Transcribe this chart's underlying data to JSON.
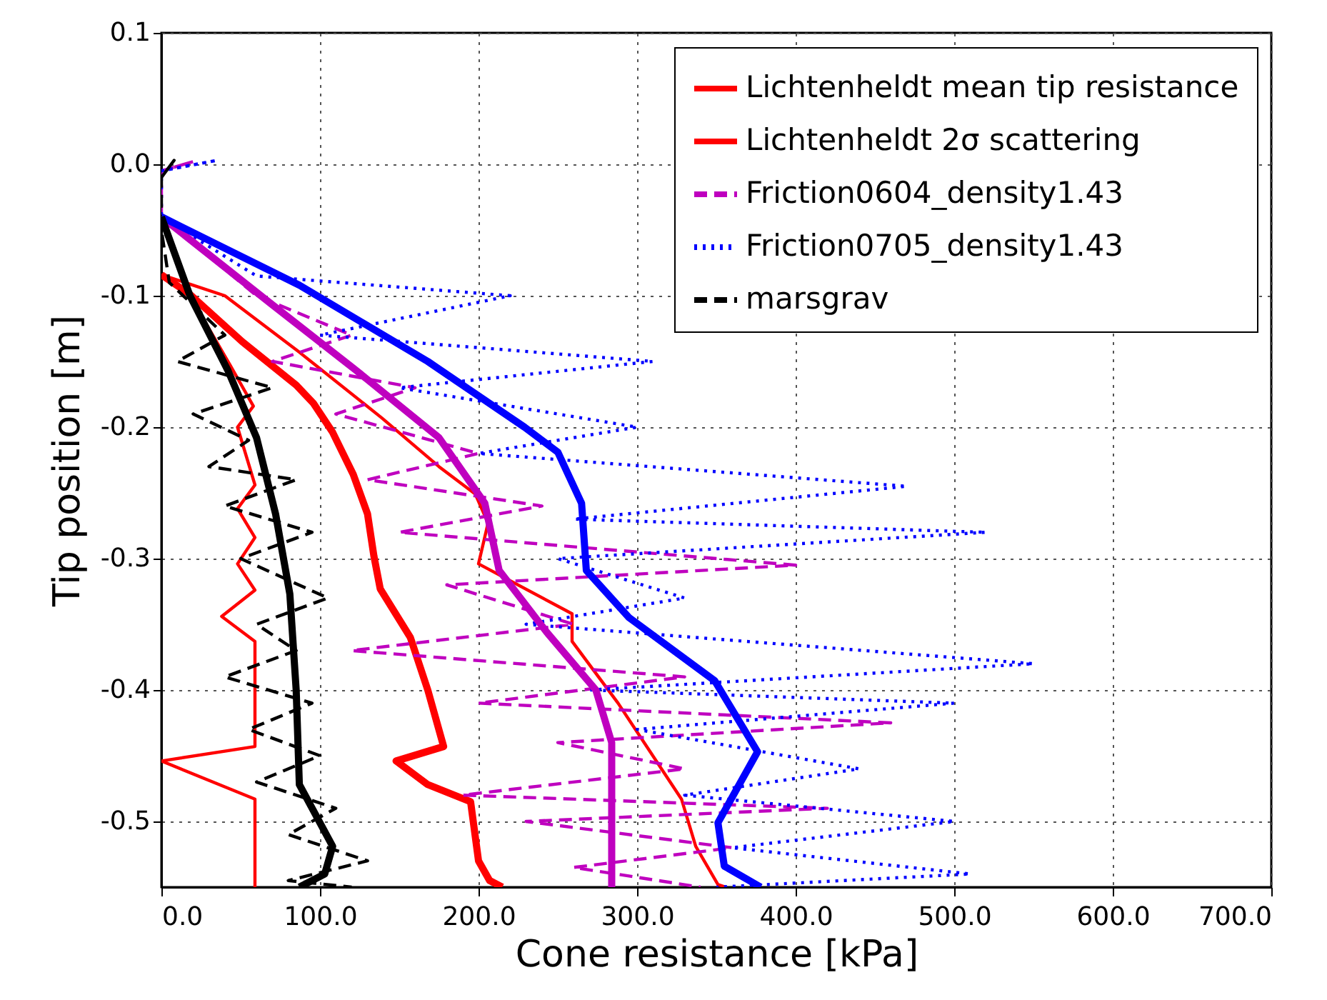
{
  "chart_data": {
    "type": "line",
    "xlabel": "Cone resistance [kPa]",
    "ylabel": "Tip position [m]",
    "xlim": [
      0,
      700
    ],
    "xticks": [
      {
        "value": 0,
        "label": "0.0"
      },
      {
        "value": 100,
        "label": "100.0"
      },
      {
        "value": 200,
        "label": "200.0"
      },
      {
        "value": 300,
        "label": "300.0"
      },
      {
        "value": 400,
        "label": "400.0"
      },
      {
        "value": 500,
        "label": "500.0"
      },
      {
        "value": 600,
        "label": "600.0"
      },
      {
        "value": 700,
        "label": "700.0"
      }
    ],
    "ylim": [
      -0.55,
      0.1
    ],
    "yticks": [
      {
        "value": -0.5,
        "label": "-0.5"
      },
      {
        "value": -0.4,
        "label": "-0.4"
      },
      {
        "value": -0.3,
        "label": "-0.3"
      },
      {
        "value": -0.2,
        "label": "-0.2"
      },
      {
        "value": -0.1,
        "label": "-0.1"
      },
      {
        "value": 0,
        "label": "0.0"
      },
      {
        "value": 0.1,
        "label": "0.1"
      }
    ],
    "grid": true,
    "legend": "top right",
    "series": [
      {
        "name": "Lichtenheldt mean tip resistance",
        "color": "#ff0000",
        "line_style": "solid",
        "x": [
          0,
          18,
          51,
          85,
          96,
          108,
          121,
          130,
          134,
          138,
          157,
          168,
          178,
          148,
          168,
          195,
          200,
          207,
          215
        ],
        "values": [
          -0.084,
          -0.099,
          -0.135,
          -0.168,
          -0.182,
          -0.204,
          -0.236,
          -0.266,
          -0.298,
          -0.323,
          -0.36,
          -0.4,
          -0.443,
          -0.454,
          -0.472,
          -0.485,
          -0.53,
          -0.545,
          -0.55
        ]
      },
      {
        "name": "Lichtenheldt 2σ scattering",
        "color": "#ff0000",
        "line_style": "solid",
        "x": [
          0,
          18,
          42,
          58,
          48,
          59,
          48,
          59,
          48,
          59,
          38,
          59,
          59,
          0,
          59,
          59
        ],
        "values": [
          -0.084,
          -0.1,
          -0.15,
          -0.184,
          -0.2,
          -0.244,
          -0.262,
          -0.284,
          -0.304,
          -0.324,
          -0.344,
          -0.363,
          -0.443,
          -0.454,
          -0.483,
          -0.55
        ]
      },
      {
        "color": "#ff0000",
        "line_style": "solid",
        "x": [
          0,
          40,
          87,
          139,
          175,
          198,
          206,
          200,
          259,
          259,
          288,
          328,
          337,
          351,
          356
        ],
        "values": [
          -0.084,
          -0.1,
          -0.143,
          -0.193,
          -0.23,
          -0.251,
          -0.273,
          -0.304,
          -0.342,
          -0.363,
          -0.41,
          -0.483,
          -0.519,
          -0.548,
          -0.55
        ]
      },
      {
        "name": "Friction0604_density1.43",
        "color": "#bf00bf",
        "line_style": "dashed",
        "x": [
          0,
          20,
          0,
          0,
          60,
          120,
          70,
          160,
          110,
          200,
          130,
          240,
          150,
          400,
          180,
          260,
          120,
          330,
          200,
          460,
          250,
          330,
          190,
          420,
          230,
          360,
          260,
          340
        ],
        "values": [
          -0.005,
          0.002,
          -0.005,
          -0.04,
          -0.1,
          -0.13,
          -0.15,
          -0.17,
          -0.19,
          -0.22,
          -0.24,
          -0.26,
          -0.28,
          -0.305,
          -0.32,
          -0.35,
          -0.37,
          -0.39,
          -0.41,
          -0.425,
          -0.44,
          -0.46,
          -0.48,
          -0.49,
          -0.5,
          -0.52,
          -0.535,
          -0.55
        ]
      },
      {
        "name": "Friction0705_density1.43",
        "color": "#0000ff",
        "line_style": "dotted",
        "x": [
          0,
          35,
          0,
          0,
          60,
          220,
          100,
          310,
          150,
          300,
          200,
          470,
          260,
          520,
          250,
          330,
          230,
          550,
          270,
          500,
          300,
          440,
          330,
          500,
          360,
          510,
          350
        ],
        "values": [
          -0.005,
          0.003,
          -0.005,
          -0.04,
          -0.085,
          -0.1,
          -0.13,
          -0.15,
          -0.17,
          -0.2,
          -0.22,
          -0.245,
          -0.27,
          -0.28,
          -0.3,
          -0.33,
          -0.35,
          -0.38,
          -0.4,
          -0.41,
          -0.43,
          -0.46,
          -0.48,
          -0.5,
          -0.52,
          -0.54,
          -0.55
        ]
      },
      {
        "name": "marsgrav",
        "color": "#000000",
        "line_style": "dashed",
        "x": [
          0,
          8,
          0,
          0,
          5,
          40,
          10,
          70,
          20,
          55,
          30,
          85,
          40,
          95,
          50,
          105,
          60,
          85,
          40,
          95,
          55,
          100,
          60,
          110,
          80,
          130,
          80,
          120
        ],
        "values": [
          -0.01,
          0.003,
          -0.01,
          -0.05,
          -0.09,
          -0.13,
          -0.15,
          -0.17,
          -0.19,
          -0.21,
          -0.23,
          -0.24,
          -0.26,
          -0.28,
          -0.3,
          -0.33,
          -0.35,
          -0.37,
          -0.39,
          -0.41,
          -0.43,
          -0.45,
          -0.47,
          -0.49,
          -0.51,
          -0.53,
          -0.545,
          -0.55
        ]
      },
      {
        "color": "#bf00bf",
        "line_style": "solid",
        "x": [
          0,
          69,
          123,
          175,
          204,
          213,
          243,
          274,
          284,
          284
        ],
        "values": [
          -0.04,
          -0.106,
          -0.157,
          -0.208,
          -0.258,
          -0.309,
          -0.356,
          -0.4,
          -0.44,
          -0.55
        ]
      },
      {
        "color": "#0000ff",
        "line_style": "solid",
        "x": [
          0,
          87,
          168,
          229,
          250,
          265,
          268,
          295,
          349,
          376,
          351,
          355,
          378
        ],
        "values": [
          -0.04,
          -0.092,
          -0.15,
          -0.2,
          -0.219,
          -0.258,
          -0.309,
          -0.345,
          -0.393,
          -0.447,
          -0.501,
          -0.534,
          -0.55
        ]
      },
      {
        "color": "#000000",
        "line_style": "solid",
        "x": [
          0,
          18,
          42,
          60,
          72,
          81,
          85,
          87,
          108,
          103,
          87
        ],
        "values": [
          -0.04,
          -0.1,
          -0.157,
          -0.208,
          -0.266,
          -0.327,
          -0.4,
          -0.472,
          -0.519,
          -0.54,
          -0.55
        ]
      }
    ]
  }
}
